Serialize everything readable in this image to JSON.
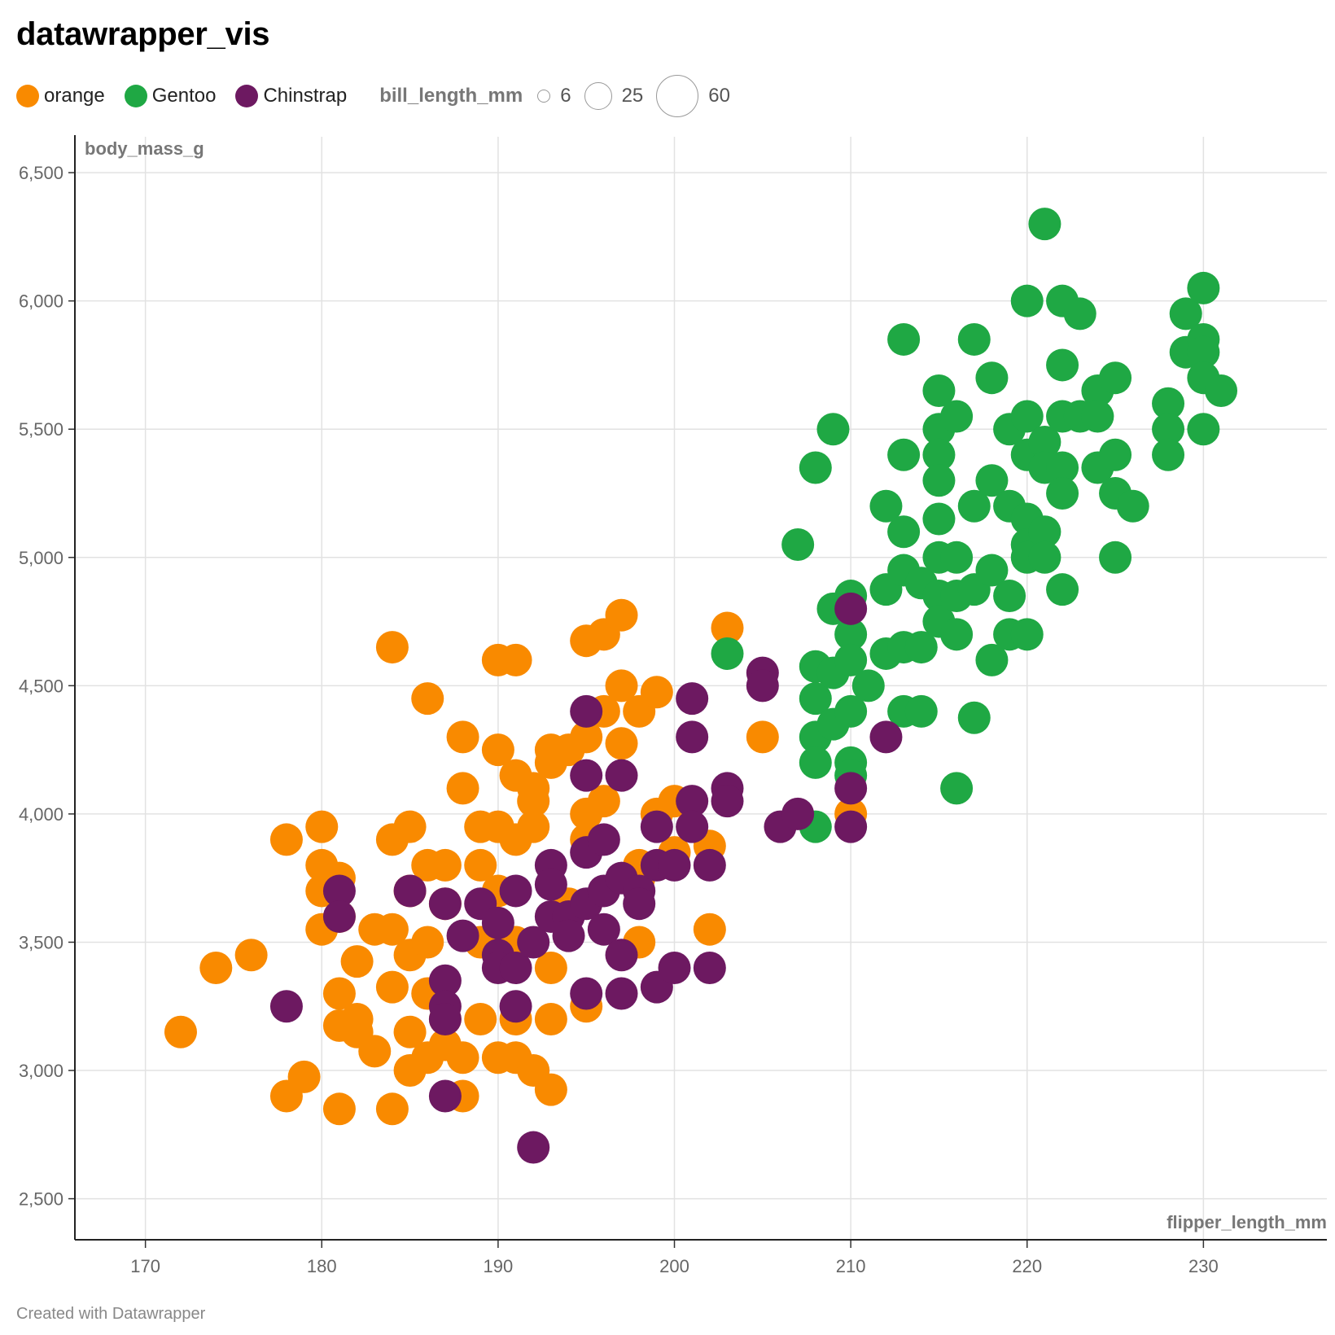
{
  "title": "datawrapper_vis",
  "footer": "Created with Datawrapper",
  "legend": {
    "color_items": [
      {
        "label": "orange",
        "color": "#f98a00"
      },
      {
        "label": "Gentoo",
        "color": "#1fa844"
      },
      {
        "label": "Chinstrap",
        "color": "#6d1961"
      }
    ],
    "size_title": "bill_length_mm",
    "size_items": [
      "6",
      "25",
      "60"
    ]
  },
  "chart_data": {
    "type": "scatter",
    "xlabel": "flipper_length_mm",
    "ylabel": "body_mass_g",
    "xlim": [
      166,
      237
    ],
    "ylim": [
      2340,
      6640
    ],
    "x_ticks": [
      170,
      180,
      190,
      200,
      210,
      220,
      230
    ],
    "x_tick_labels": [
      "170",
      "180",
      "190",
      "200",
      "210",
      "220",
      "230"
    ],
    "y_ticks": [
      2500,
      3000,
      3500,
      4000,
      4500,
      5000,
      5500,
      6000,
      6500
    ],
    "y_tick_labels": [
      "2,500",
      "3,000",
      "3,500",
      "4,000",
      "4,500",
      "5,000",
      "5,500",
      "6,000",
      "6,500"
    ],
    "grid": true,
    "series": [
      {
        "name": "orange",
        "color": "#f98a00",
        "points": [
          [
            172,
            3150
          ],
          [
            174,
            3400
          ],
          [
            176,
            3450
          ],
          [
            178,
            3900
          ],
          [
            178,
            2900
          ],
          [
            179,
            2975
          ],
          [
            180,
            3950
          ],
          [
            180,
            3800
          ],
          [
            180,
            3700
          ],
          [
            180,
            3550
          ],
          [
            181,
            3600
          ],
          [
            181,
            3750
          ],
          [
            181,
            3300
          ],
          [
            181,
            3175
          ],
          [
            181,
            2850
          ],
          [
            182,
            3200
          ],
          [
            182,
            3150
          ],
          [
            182,
            3425
          ],
          [
            183,
            3075
          ],
          [
            183,
            3550
          ],
          [
            184,
            4650
          ],
          [
            184,
            3900
          ],
          [
            184,
            3325
          ],
          [
            184,
            2850
          ],
          [
            184,
            3550
          ],
          [
            185,
            3950
          ],
          [
            185,
            3700
          ],
          [
            185,
            3150
          ],
          [
            185,
            3000
          ],
          [
            185,
            3450
          ],
          [
            186,
            4450
          ],
          [
            186,
            3800
          ],
          [
            186,
            3500
          ],
          [
            186,
            3300
          ],
          [
            186,
            3050
          ],
          [
            187,
            3800
          ],
          [
            187,
            3650
          ],
          [
            187,
            3200
          ],
          [
            187,
            3100
          ],
          [
            188,
            4300
          ],
          [
            188,
            4100
          ],
          [
            188,
            3050
          ],
          [
            188,
            2900
          ],
          [
            189,
            3950
          ],
          [
            189,
            3800
          ],
          [
            189,
            3500
          ],
          [
            189,
            3200
          ],
          [
            190,
            4600
          ],
          [
            190,
            4250
          ],
          [
            190,
            3950
          ],
          [
            190,
            3700
          ],
          [
            190,
            3050
          ],
          [
            191,
            4600
          ],
          [
            191,
            4150
          ],
          [
            191,
            3900
          ],
          [
            191,
            3500
          ],
          [
            191,
            3200
          ],
          [
            191,
            3050
          ],
          [
            192,
            4100
          ],
          [
            192,
            4050
          ],
          [
            192,
            3950
          ],
          [
            192,
            3000
          ],
          [
            193,
            4250
          ],
          [
            193,
            4200
          ],
          [
            193,
            3400
          ],
          [
            193,
            2925
          ],
          [
            193,
            3200
          ],
          [
            194,
            4250
          ],
          [
            194,
            3650
          ],
          [
            195,
            4675
          ],
          [
            195,
            4300
          ],
          [
            195,
            4000
          ],
          [
            195,
            3900
          ],
          [
            195,
            3250
          ],
          [
            196,
            4700
          ],
          [
            196,
            4400
          ],
          [
            196,
            4050
          ],
          [
            197,
            4775
          ],
          [
            197,
            4500
          ],
          [
            197,
            4275
          ],
          [
            198,
            4400
          ],
          [
            198,
            3800
          ],
          [
            198,
            3750
          ],
          [
            198,
            3500
          ],
          [
            199,
            4475
          ],
          [
            199,
            4000
          ],
          [
            200,
            4050
          ],
          [
            200,
            3850
          ],
          [
            202,
            3875
          ],
          [
            202,
            3550
          ],
          [
            203,
            4725
          ],
          [
            205,
            4300
          ],
          [
            210,
            4000
          ]
        ]
      },
      {
        "name": "Gentoo",
        "color": "#1fa844",
        "points": [
          [
            203,
            4625
          ],
          [
            207,
            5050
          ],
          [
            208,
            5350
          ],
          [
            208,
            4575
          ],
          [
            208,
            4450
          ],
          [
            208,
            4300
          ],
          [
            208,
            4200
          ],
          [
            208,
            3950
          ],
          [
            209,
            5500
          ],
          [
            209,
            4800
          ],
          [
            209,
            4550
          ],
          [
            209,
            4350
          ],
          [
            210,
            4850
          ],
          [
            210,
            4700
          ],
          [
            210,
            4600
          ],
          [
            210,
            4400
          ],
          [
            210,
            4200
          ],
          [
            210,
            4150
          ],
          [
            211,
            4500
          ],
          [
            212,
            5200
          ],
          [
            212,
            4875
          ],
          [
            212,
            4625
          ],
          [
            213,
            5850
          ],
          [
            213,
            5400
          ],
          [
            213,
            5100
          ],
          [
            213,
            4950
          ],
          [
            213,
            4400
          ],
          [
            213,
            4650
          ],
          [
            214,
            4900
          ],
          [
            214,
            4650
          ],
          [
            214,
            4400
          ],
          [
            215,
            5650
          ],
          [
            215,
            5500
          ],
          [
            215,
            5400
          ],
          [
            215,
            5300
          ],
          [
            215,
            5150
          ],
          [
            215,
            5000
          ],
          [
            215,
            4850
          ],
          [
            215,
            4750
          ],
          [
            216,
            5550
          ],
          [
            216,
            5000
          ],
          [
            216,
            4850
          ],
          [
            216,
            4700
          ],
          [
            216,
            4100
          ],
          [
            217,
            5850
          ],
          [
            217,
            5200
          ],
          [
            217,
            4875
          ],
          [
            217,
            4375
          ],
          [
            218,
            5700
          ],
          [
            218,
            5300
          ],
          [
            218,
            4950
          ],
          [
            218,
            4600
          ],
          [
            219,
            5500
          ],
          [
            219,
            5200
          ],
          [
            219,
            4850
          ],
          [
            219,
            4700
          ],
          [
            220,
            6000
          ],
          [
            220,
            5550
          ],
          [
            220,
            5400
          ],
          [
            220,
            5150
          ],
          [
            220,
            5050
          ],
          [
            220,
            5000
          ],
          [
            220,
            4700
          ],
          [
            221,
            6300
          ],
          [
            221,
            5450
          ],
          [
            221,
            5350
          ],
          [
            221,
            5100
          ],
          [
            221,
            5000
          ],
          [
            222,
            6000
          ],
          [
            222,
            5750
          ],
          [
            222,
            5550
          ],
          [
            222,
            5350
          ],
          [
            222,
            5250
          ],
          [
            222,
            4875
          ],
          [
            223,
            5950
          ],
          [
            223,
            5550
          ],
          [
            224,
            5650
          ],
          [
            224,
            5550
          ],
          [
            224,
            5350
          ],
          [
            225,
            5700
          ],
          [
            225,
            5400
          ],
          [
            225,
            5250
          ],
          [
            225,
            5000
          ],
          [
            226,
            5200
          ],
          [
            228,
            5600
          ],
          [
            228,
            5500
          ],
          [
            228,
            5400
          ],
          [
            229,
            5950
          ],
          [
            229,
            5800
          ],
          [
            230,
            6050
          ],
          [
            230,
            5850
          ],
          [
            230,
            5800
          ],
          [
            230,
            5700
          ],
          [
            230,
            5500
          ],
          [
            231,
            5650
          ]
        ]
      },
      {
        "name": "Chinstrap",
        "color": "#6d1961",
        "points": [
          [
            178,
            3250
          ],
          [
            181,
            3700
          ],
          [
            181,
            3600
          ],
          [
            185,
            3700
          ],
          [
            187,
            3650
          ],
          [
            187,
            3350
          ],
          [
            187,
            3250
          ],
          [
            187,
            3200
          ],
          [
            187,
            2900
          ],
          [
            188,
            3525
          ],
          [
            189,
            3650
          ],
          [
            190,
            3575
          ],
          [
            190,
            3450
          ],
          [
            190,
            3400
          ],
          [
            191,
            3700
          ],
          [
            191,
            3400
          ],
          [
            191,
            3250
          ],
          [
            192,
            3500
          ],
          [
            192,
            2700
          ],
          [
            193,
            3800
          ],
          [
            193,
            3725
          ],
          [
            193,
            3600
          ],
          [
            194,
            3600
          ],
          [
            194,
            3525
          ],
          [
            195,
            4400
          ],
          [
            195,
            4150
          ],
          [
            195,
            3850
          ],
          [
            195,
            3650
          ],
          [
            195,
            3300
          ],
          [
            196,
            3900
          ],
          [
            196,
            3700
          ],
          [
            196,
            3550
          ],
          [
            197,
            4150
          ],
          [
            197,
            3750
          ],
          [
            197,
            3450
          ],
          [
            197,
            3300
          ],
          [
            198,
            3700
          ],
          [
            198,
            3650
          ],
          [
            199,
            3950
          ],
          [
            199,
            3800
          ],
          [
            199,
            3325
          ],
          [
            200,
            3800
          ],
          [
            200,
            3400
          ],
          [
            201,
            4450
          ],
          [
            201,
            4300
          ],
          [
            201,
            4050
          ],
          [
            201,
            3950
          ],
          [
            202,
            3800
          ],
          [
            202,
            3400
          ],
          [
            203,
            4100
          ],
          [
            203,
            4050
          ],
          [
            205,
            4550
          ],
          [
            205,
            4500
          ],
          [
            206,
            3950
          ],
          [
            207,
            4000
          ],
          [
            210,
            4800
          ],
          [
            210,
            4100
          ],
          [
            210,
            3950
          ],
          [
            212,
            4300
          ]
        ]
      }
    ],
    "size_encoding": {
      "field": "bill_length_mm",
      "legend_values": [
        6,
        25,
        60
      ]
    }
  }
}
